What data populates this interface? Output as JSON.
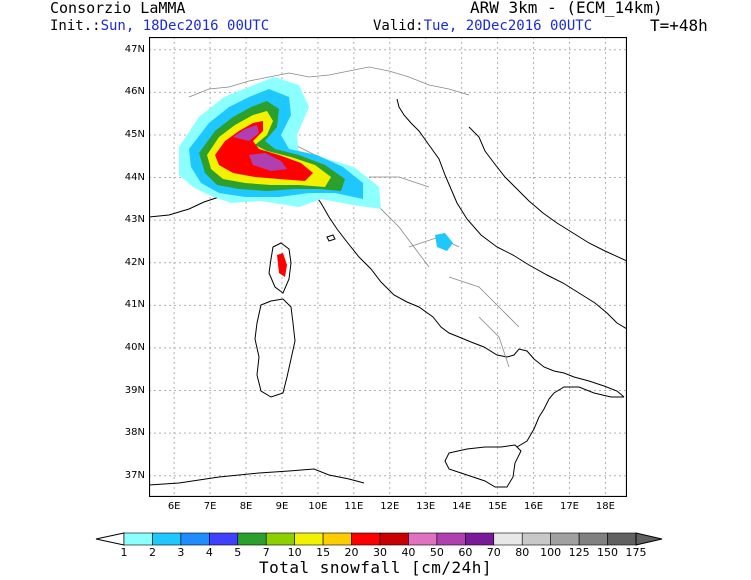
{
  "header": {
    "organization": "Consorzio LaMMA",
    "model": "ARW 3km - (ECM_14km)",
    "init_label": "Init.:",
    "init_value": "Sun, 18Dec2016 00UTC",
    "valid_label": "Valid:",
    "valid_value": "Tue, 20Dec2016 00UTC",
    "lead_time": "T=+48h"
  },
  "map": {
    "lon_labels": [
      "6E",
      "7E",
      "8E",
      "9E",
      "10E",
      "11E",
      "12E",
      "13E",
      "14E",
      "15E",
      "16E",
      "17E",
      "18E"
    ],
    "lat_labels": [
      "47N",
      "46N",
      "45N",
      "44N",
      "43N",
      "42N",
      "41N",
      "40N",
      "39N",
      "38N",
      "37N"
    ],
    "lon_range": [
      5.3,
      18.6
    ],
    "lat_range": [
      36.5,
      47.3
    ]
  },
  "legend": {
    "title": "Total snowfall [cm/24h]",
    "levels": [
      "1",
      "2",
      "3",
      "4",
      "5",
      "7",
      "10",
      "15",
      "20",
      "30",
      "40",
      "50",
      "60",
      "70",
      "80",
      "100",
      "125",
      "150",
      "175"
    ],
    "colors": [
      "#8cffff",
      "#1ec8ff",
      "#1f8cff",
      "#4040ff",
      "#2ca02c",
      "#8cd000",
      "#f2f200",
      "#ffcc00",
      "#ff0000",
      "#c80000",
      "#e070c0",
      "#b040b0",
      "#7a1a9a",
      "#e8e8e8",
      "#c8c8c8",
      "#a0a0a0",
      "#808080",
      "#606060"
    ],
    "low_end_color": "#ffffff",
    "high_end_color": "#606060"
  }
}
